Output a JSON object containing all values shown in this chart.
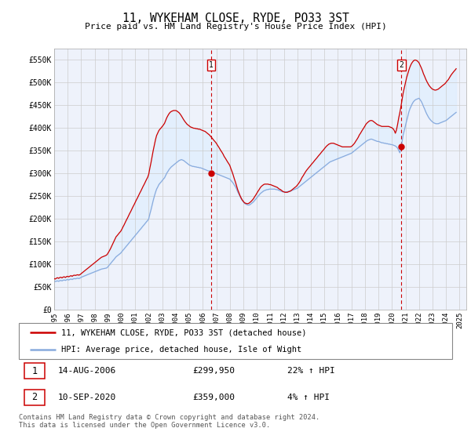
{
  "title": "11, WYKEHAM CLOSE, RYDE, PO33 3ST",
  "subtitle": "Price paid vs. HM Land Registry's House Price Index (HPI)",
  "ylabel_ticks": [
    "£0",
    "£50K",
    "£100K",
    "£150K",
    "£200K",
    "£250K",
    "£300K",
    "£350K",
    "£400K",
    "£450K",
    "£500K",
    "£550K"
  ],
  "ytick_values": [
    0,
    50000,
    100000,
    150000,
    200000,
    250000,
    300000,
    350000,
    400000,
    450000,
    500000,
    550000
  ],
  "ylim": [
    0,
    575000
  ],
  "xlim_start": 1995.0,
  "xlim_end": 2025.5,
  "xtick_years": [
    1995,
    1996,
    1997,
    1998,
    1999,
    2000,
    2001,
    2002,
    2003,
    2004,
    2005,
    2006,
    2007,
    2008,
    2009,
    2010,
    2011,
    2012,
    2013,
    2014,
    2015,
    2016,
    2017,
    2018,
    2019,
    2020,
    2021,
    2022,
    2023,
    2024,
    2025
  ],
  "transaction1_x": 2006.62,
  "transaction1_y": 299950,
  "transaction2_x": 2020.7,
  "transaction2_y": 359000,
  "line1_color": "#cc0000",
  "line2_color": "#88aadd",
  "fill_color": "#ddeeff",
  "marker_color": "#cc0000",
  "vline_color": "#cc0000",
  "grid_color": "#cccccc",
  "bg_color": "#ffffff",
  "plot_bg_color": "#f0f4ff",
  "legend_line1": "11, WYKEHAM CLOSE, RYDE, PO33 3ST (detached house)",
  "legend_line2": "HPI: Average price, detached house, Isle of Wight",
  "info1_num": "1",
  "info1_date": "14-AUG-2006",
  "info1_price": "£299,950",
  "info1_hpi": "22% ↑ HPI",
  "info2_num": "2",
  "info2_date": "10-SEP-2020",
  "info2_price": "£359,000",
  "info2_hpi": "4% ↑ HPI",
  "footer": "Contains HM Land Registry data © Crown copyright and database right 2024.\nThis data is licensed under the Open Government Licence v3.0.",
  "hpi_years": [
    1995.0,
    1995.08,
    1995.17,
    1995.25,
    1995.33,
    1995.42,
    1995.5,
    1995.58,
    1995.67,
    1995.75,
    1995.83,
    1995.92,
    1996.0,
    1996.08,
    1996.17,
    1996.25,
    1996.33,
    1996.42,
    1996.5,
    1996.58,
    1996.67,
    1996.75,
    1996.83,
    1996.92,
    1997.0,
    1997.08,
    1997.17,
    1997.25,
    1997.33,
    1997.42,
    1997.5,
    1997.58,
    1997.67,
    1997.75,
    1997.83,
    1997.92,
    1998.0,
    1998.08,
    1998.17,
    1998.25,
    1998.33,
    1998.42,
    1998.5,
    1998.58,
    1998.67,
    1998.75,
    1998.83,
    1998.92,
    1999.0,
    1999.08,
    1999.17,
    1999.25,
    1999.33,
    1999.42,
    1999.5,
    1999.58,
    1999.67,
    1999.75,
    1999.83,
    1999.92,
    2000.0,
    2000.08,
    2000.17,
    2000.25,
    2000.33,
    2000.42,
    2000.5,
    2000.58,
    2000.67,
    2000.75,
    2000.83,
    2000.92,
    2001.0,
    2001.08,
    2001.17,
    2001.25,
    2001.33,
    2001.42,
    2001.5,
    2001.58,
    2001.67,
    2001.75,
    2001.83,
    2001.92,
    2002.0,
    2002.08,
    2002.17,
    2002.25,
    2002.33,
    2002.42,
    2002.5,
    2002.58,
    2002.67,
    2002.75,
    2002.83,
    2002.92,
    2003.0,
    2003.08,
    2003.17,
    2003.25,
    2003.33,
    2003.42,
    2003.5,
    2003.58,
    2003.67,
    2003.75,
    2003.83,
    2003.92,
    2004.0,
    2004.08,
    2004.17,
    2004.25,
    2004.33,
    2004.42,
    2004.5,
    2004.58,
    2004.67,
    2004.75,
    2004.83,
    2004.92,
    2005.0,
    2005.08,
    2005.17,
    2005.25,
    2005.33,
    2005.42,
    2005.5,
    2005.58,
    2005.67,
    2005.75,
    2005.83,
    2005.92,
    2006.0,
    2006.08,
    2006.17,
    2006.25,
    2006.33,
    2006.42,
    2006.5,
    2006.58,
    2006.67,
    2006.75,
    2006.83,
    2006.92,
    2007.0,
    2007.08,
    2007.17,
    2007.25,
    2007.33,
    2007.42,
    2007.5,
    2007.58,
    2007.67,
    2007.75,
    2007.83,
    2007.92,
    2008.0,
    2008.08,
    2008.17,
    2008.25,
    2008.33,
    2008.42,
    2008.5,
    2008.58,
    2008.67,
    2008.75,
    2008.83,
    2008.92,
    2009.0,
    2009.08,
    2009.17,
    2009.25,
    2009.33,
    2009.42,
    2009.5,
    2009.58,
    2009.67,
    2009.75,
    2009.83,
    2009.92,
    2010.0,
    2010.08,
    2010.17,
    2010.25,
    2010.33,
    2010.42,
    2010.5,
    2010.58,
    2010.67,
    2010.75,
    2010.83,
    2010.92,
    2011.0,
    2011.08,
    2011.17,
    2011.25,
    2011.33,
    2011.42,
    2011.5,
    2011.58,
    2011.67,
    2011.75,
    2011.83,
    2011.92,
    2012.0,
    2012.08,
    2012.17,
    2012.25,
    2012.33,
    2012.42,
    2012.5,
    2012.58,
    2012.67,
    2012.75,
    2012.83,
    2012.92,
    2013.0,
    2013.08,
    2013.17,
    2013.25,
    2013.33,
    2013.42,
    2013.5,
    2013.58,
    2013.67,
    2013.75,
    2013.83,
    2013.92,
    2014.0,
    2014.08,
    2014.17,
    2014.25,
    2014.33,
    2014.42,
    2014.5,
    2014.58,
    2014.67,
    2014.75,
    2014.83,
    2014.92,
    2015.0,
    2015.08,
    2015.17,
    2015.25,
    2015.33,
    2015.42,
    2015.5,
    2015.58,
    2015.67,
    2015.75,
    2015.83,
    2015.92,
    2016.0,
    2016.08,
    2016.17,
    2016.25,
    2016.33,
    2016.42,
    2016.5,
    2016.58,
    2016.67,
    2016.75,
    2016.83,
    2016.92,
    2017.0,
    2017.08,
    2017.17,
    2017.25,
    2017.33,
    2017.42,
    2017.5,
    2017.58,
    2017.67,
    2017.75,
    2017.83,
    2017.92,
    2018.0,
    2018.08,
    2018.17,
    2018.25,
    2018.33,
    2018.42,
    2018.5,
    2018.58,
    2018.67,
    2018.75,
    2018.83,
    2018.92,
    2019.0,
    2019.08,
    2019.17,
    2019.25,
    2019.33,
    2019.42,
    2019.5,
    2019.58,
    2019.67,
    2019.75,
    2019.83,
    2019.92,
    2020.0,
    2020.08,
    2020.17,
    2020.25,
    2020.33,
    2020.42,
    2020.5,
    2020.58,
    2020.67,
    2020.75,
    2020.83,
    2020.92,
    2021.0,
    2021.08,
    2021.17,
    2021.25,
    2021.33,
    2021.42,
    2021.5,
    2021.58,
    2021.67,
    2021.75,
    2021.83,
    2021.92,
    2022.0,
    2022.08,
    2022.17,
    2022.25,
    2022.33,
    2022.42,
    2022.5,
    2022.58,
    2022.67,
    2022.75,
    2022.83,
    2022.92,
    2023.0,
    2023.08,
    2023.17,
    2023.25,
    2023.33,
    2023.42,
    2023.5,
    2023.58,
    2023.67,
    2023.75,
    2023.83,
    2023.92,
    2024.0,
    2024.08,
    2024.17,
    2024.25,
    2024.33,
    2024.42,
    2024.5,
    2024.58,
    2024.67,
    2024.75
  ],
  "hpi_vals": [
    62000,
    61500,
    62500,
    63000,
    62000,
    63500,
    64000,
    63000,
    64500,
    65000,
    64000,
    65500,
    66000,
    65000,
    66500,
    67000,
    66000,
    67500,
    68000,
    67500,
    68500,
    69000,
    68000,
    69500,
    71000,
    72000,
    73000,
    74000,
    75000,
    76000,
    77000,
    78000,
    79000,
    80000,
    81000,
    82000,
    83000,
    84000,
    85000,
    86000,
    87000,
    88000,
    89000,
    89500,
    90000,
    90500,
    91000,
    92000,
    95000,
    98000,
    101000,
    104000,
    107000,
    110000,
    113000,
    116000,
    118000,
    120000,
    122000,
    124000,
    127000,
    130000,
    133000,
    136000,
    139000,
    142000,
    145000,
    148000,
    151000,
    154000,
    157000,
    160000,
    163000,
    166000,
    169000,
    172000,
    175000,
    178000,
    181000,
    184000,
    187000,
    190000,
    193000,
    196000,
    200000,
    210000,
    220000,
    230000,
    240000,
    250000,
    258000,
    265000,
    270000,
    275000,
    278000,
    281000,
    284000,
    287000,
    290000,
    295000,
    300000,
    304000,
    308000,
    311000,
    314000,
    316000,
    318000,
    320000,
    322000,
    324000,
    326000,
    328000,
    329000,
    330000,
    329000,
    328000,
    326000,
    324000,
    322000,
    320000,
    318000,
    317000,
    316000,
    315000,
    315000,
    314000,
    314000,
    313000,
    313000,
    312000,
    312000,
    311000,
    310000,
    309000,
    308000,
    307000,
    306000,
    305000,
    305000,
    304000,
    303000,
    302000,
    301000,
    300000,
    299000,
    298000,
    297000,
    296000,
    295000,
    294000,
    293000,
    292000,
    291000,
    290000,
    289000,
    288000,
    287000,
    284000,
    281000,
    278000,
    274000,
    270000,
    265000,
    259000,
    254000,
    249000,
    244000,
    240000,
    237000,
    234000,
    232000,
    231000,
    230000,
    230000,
    231000,
    233000,
    235000,
    237000,
    240000,
    243000,
    246000,
    249000,
    252000,
    255000,
    257000,
    259000,
    261000,
    262000,
    263000,
    264000,
    264000,
    265000,
    265000,
    265000,
    265000,
    265000,
    265000,
    264000,
    264000,
    263000,
    262000,
    261000,
    260000,
    259000,
    259000,
    259000,
    259000,
    259000,
    260000,
    260000,
    261000,
    262000,
    263000,
    264000,
    265000,
    266000,
    267000,
    269000,
    271000,
    273000,
    275000,
    277000,
    279000,
    281000,
    283000,
    285000,
    287000,
    289000,
    291000,
    293000,
    295000,
    297000,
    299000,
    301000,
    303000,
    305000,
    307000,
    309000,
    311000,
    313000,
    315000,
    317000,
    319000,
    321000,
    323000,
    325000,
    326000,
    327000,
    328000,
    329000,
    330000,
    331000,
    332000,
    333000,
    334000,
    335000,
    336000,
    337000,
    338000,
    339000,
    340000,
    341000,
    342000,
    343000,
    344000,
    346000,
    348000,
    350000,
    352000,
    354000,
    356000,
    358000,
    360000,
    362000,
    364000,
    366000,
    368000,
    370000,
    372000,
    373000,
    374000,
    375000,
    375000,
    374000,
    373000,
    372000,
    371000,
    370000,
    370000,
    369000,
    368000,
    367000,
    367000,
    366000,
    366000,
    365000,
    365000,
    364000,
    364000,
    363000,
    363000,
    362000,
    361000,
    360000,
    358000,
    355000,
    350000,
    345000,
    355000,
    370000,
    385000,
    395000,
    405000,
    415000,
    425000,
    435000,
    442000,
    448000,
    453000,
    457000,
    460000,
    462000,
    463000,
    464000,
    465000,
    462000,
    458000,
    453000,
    447000,
    441000,
    435000,
    430000,
    425000,
    421000,
    418000,
    415000,
    413000,
    411000,
    410000,
    409000,
    409000,
    409000,
    410000,
    411000,
    412000,
    413000,
    414000,
    415000,
    416000,
    418000,
    420000,
    422000,
    424000,
    426000,
    428000,
    430000,
    432000,
    434000
  ],
  "house_vals": [
    68000,
    67000,
    69000,
    70000,
    68500,
    70500,
    71000,
    69500,
    71500,
    72000,
    70500,
    72500,
    73000,
    72000,
    73500,
    74500,
    73000,
    75000,
    75500,
    75000,
    76000,
    76500,
    75500,
    77000,
    79000,
    81000,
    83000,
    85000,
    87000,
    89000,
    91000,
    93000,
    95000,
    97000,
    99000,
    101000,
    103000,
    105000,
    107000,
    109000,
    111000,
    113000,
    115000,
    116000,
    117000,
    118000,
    119000,
    121000,
    125000,
    129000,
    134000,
    139000,
    144000,
    150000,
    155000,
    160000,
    163000,
    166000,
    169000,
    172000,
    176000,
    181000,
    186000,
    191000,
    196000,
    201000,
    206000,
    211000,
    216000,
    221000,
    226000,
    231000,
    236000,
    241000,
    246000,
    251000,
    256000,
    261000,
    266000,
    271000,
    276000,
    281000,
    286000,
    291000,
    298000,
    311000,
    324000,
    337000,
    350000,
    363000,
    374000,
    383000,
    389000,
    394000,
    397000,
    400000,
    403000,
    406000,
    410000,
    416000,
    422000,
    427000,
    431000,
    434000,
    436000,
    437000,
    438000,
    438000,
    438000,
    437000,
    435000,
    433000,
    430000,
    426000,
    422000,
    418000,
    414000,
    411000,
    408000,
    406000,
    404000,
    402000,
    401000,
    400000,
    399000,
    399000,
    398000,
    398000,
    397000,
    397000,
    396000,
    395000,
    394000,
    393000,
    392000,
    390000,
    388000,
    386000,
    384000,
    381000,
    378000,
    375000,
    372000,
    369000,
    366000,
    362000,
    358000,
    354000,
    350000,
    346000,
    342000,
    337000,
    333000,
    329000,
    325000,
    321000,
    317000,
    310000,
    303000,
    296000,
    288000,
    280000,
    272000,
    264000,
    257000,
    251000,
    246000,
    241000,
    238000,
    235000,
    234000,
    233000,
    233000,
    234000,
    236000,
    238000,
    241000,
    244000,
    248000,
    252000,
    256000,
    260000,
    264000,
    268000,
    271000,
    273000,
    275000,
    276000,
    276000,
    276000,
    276000,
    275000,
    275000,
    274000,
    273000,
    272000,
    271000,
    270000,
    269000,
    267000,
    265000,
    264000,
    262000,
    260000,
    259000,
    258000,
    258000,
    258000,
    259000,
    260000,
    261000,
    263000,
    265000,
    267000,
    269000,
    271000,
    274000,
    277000,
    281000,
    285000,
    290000,
    294000,
    298000,
    302000,
    306000,
    309000,
    312000,
    315000,
    318000,
    321000,
    324000,
    327000,
    330000,
    333000,
    336000,
    339000,
    342000,
    345000,
    348000,
    351000,
    354000,
    357000,
    360000,
    362000,
    364000,
    365000,
    366000,
    366000,
    366000,
    365000,
    364000,
    363000,
    362000,
    361000,
    360000,
    359000,
    358000,
    358000,
    358000,
    358000,
    358000,
    358000,
    358000,
    358000,
    359000,
    361000,
    364000,
    367000,
    371000,
    375000,
    379000,
    384000,
    388000,
    392000,
    396000,
    400000,
    404000,
    408000,
    411000,
    413000,
    415000,
    416000,
    416000,
    415000,
    413000,
    411000,
    409000,
    407000,
    406000,
    405000,
    404000,
    403000,
    403000,
    403000,
    403000,
    403000,
    403000,
    403000,
    402000,
    401000,
    400000,
    398000,
    394000,
    388000,
    395000,
    408000,
    422000,
    433000,
    448000,
    463000,
    477000,
    489000,
    500000,
    510000,
    519000,
    527000,
    534000,
    540000,
    544000,
    547000,
    549000,
    549000,
    548000,
    546000,
    543000,
    538000,
    532000,
    526000,
    519000,
    513000,
    507000,
    502000,
    497000,
    493000,
    490000,
    487000,
    485000,
    484000,
    483000,
    483000,
    484000,
    485000,
    487000,
    489000,
    491000,
    493000,
    495000,
    497000,
    500000,
    503000,
    506000,
    510000,
    514000,
    518000,
    521000,
    524000,
    527000,
    530000
  ]
}
